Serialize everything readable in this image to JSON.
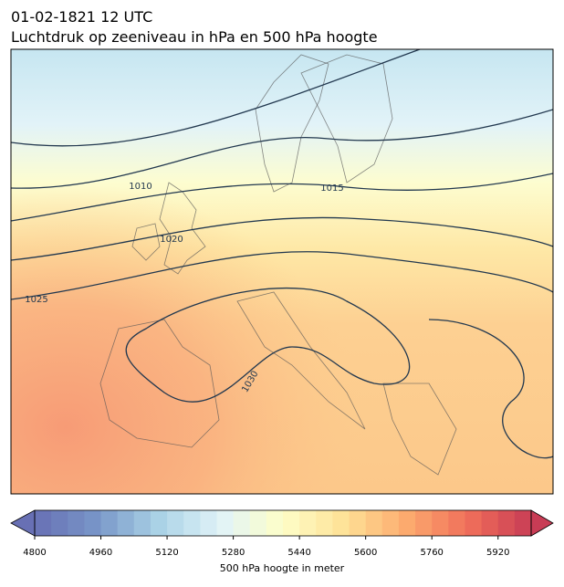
{
  "title": {
    "line1": "01-02-1821 12 UTC",
    "line2": "Luchtdruk op zeeniveau in hPa en 500 hPa hoogte"
  },
  "map": {
    "contour_labels": [
      1010,
      1015,
      1020,
      1025,
      1030
    ]
  },
  "colorbar": {
    "lim": [
      4800,
      6000
    ],
    "ticks": [
      4800,
      4960,
      5120,
      5280,
      5440,
      5600,
      5760,
      5920
    ],
    "label": "500 hPa hoogte in meter"
  }
}
